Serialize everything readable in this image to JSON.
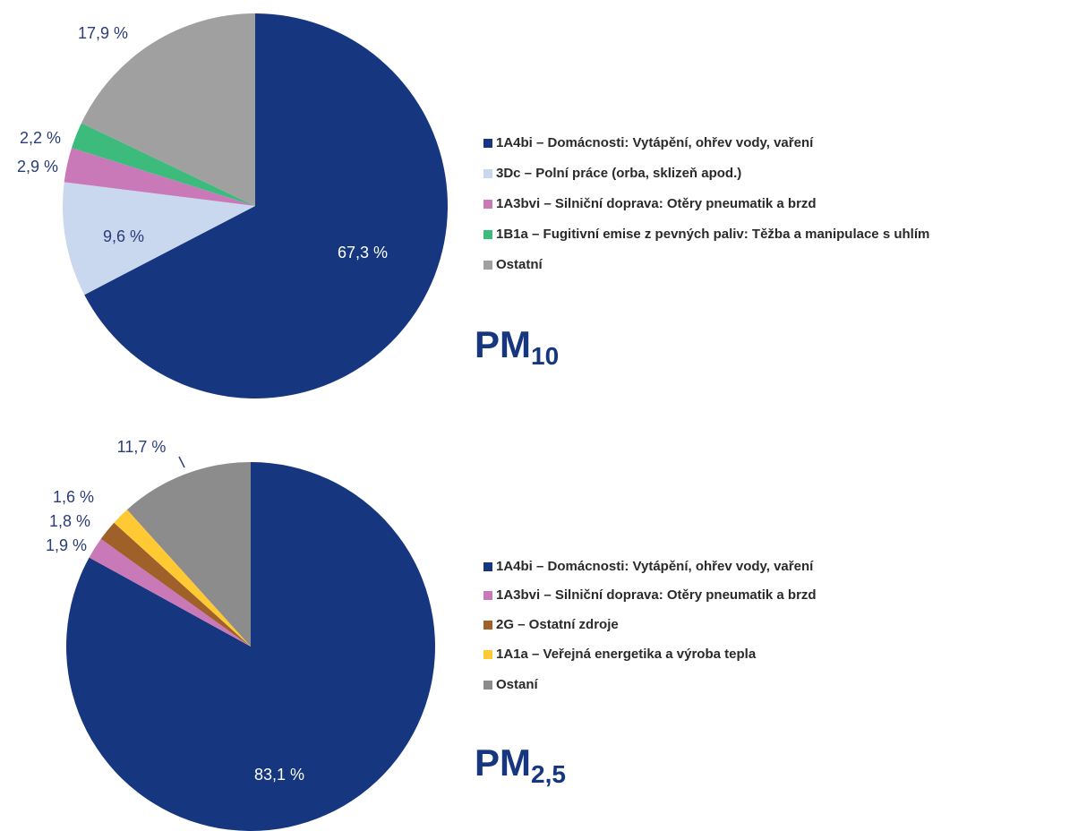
{
  "chart_data": [
    {
      "type": "pie",
      "title": "PM",
      "title_subscript": "10",
      "categories": [
        "1A4bi – Domácnosti: Vytápění, ohřev vody, vaření",
        "3Dc – Polní práce (orba, sklizeň apod.)",
        "1A3bvi – Silniční doprava: Otěry pneumatik a brzd",
        "1B1a – Fugitivní emise z pevných paliv: Těžba a manipulace s uhlím",
        "Ostatní"
      ],
      "values": [
        67.3,
        9.6,
        2.9,
        2.2,
        17.9
      ],
      "value_labels": [
        "67,3 %",
        "9,6 %",
        "2,9 %",
        "2,2 %",
        "17,9 %"
      ],
      "colors": [
        "#16377f",
        "#c9d7ef",
        "#c979b8",
        "#3dbb7d",
        "#a0a0a0"
      ]
    },
    {
      "type": "pie",
      "title": "PM",
      "title_subscript": "2,5",
      "categories": [
        "1A4bi – Domácnosti: Vytápění, ohřev vody, vaření",
        "1A3bvi – Silniční doprava: Otěry pneumatik a brzd",
        "2G – Ostatní zdroje",
        "1A1a – Veřejná energetika a výroba tepla",
        "Ostaní"
      ],
      "values": [
        83.1,
        1.9,
        1.8,
        1.6,
        11.7
      ],
      "value_labels": [
        "83,1 %",
        "1,9 %",
        "1,8 %",
        "1,6 %",
        "11,7 %"
      ],
      "colors": [
        "#16377f",
        "#c979b8",
        "#a0602a",
        "#ffc934",
        "#8c8c8c"
      ]
    }
  ]
}
